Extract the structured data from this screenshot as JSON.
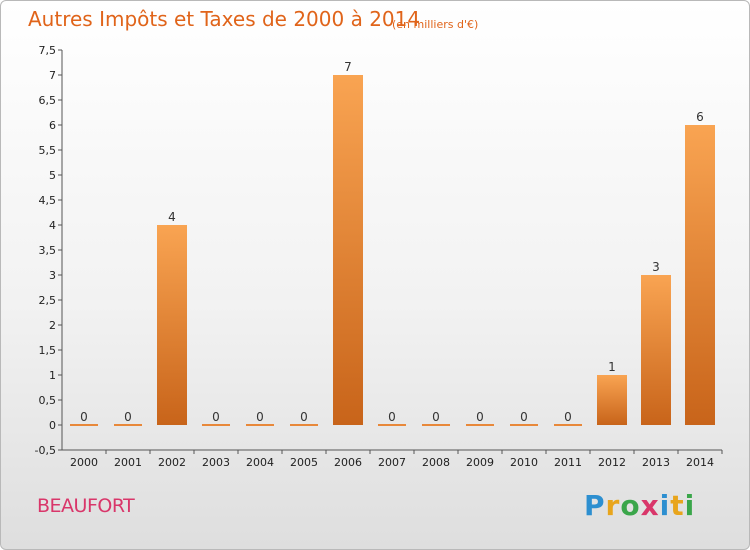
{
  "title": "Autres Impôts et Taxes de 2000 à 2014",
  "subtitle": "(en milliers d'€)",
  "commune": "BEAUFORT",
  "logo": {
    "letters": [
      "P",
      "r",
      "o",
      "x",
      "i",
      "t",
      "i"
    ],
    "colors": [
      "#2d8fd0",
      "#e8a51c",
      "#3aa64a",
      "#d9366a",
      "#2d8fd0",
      "#e8a51c",
      "#3aa64a"
    ]
  },
  "chart_data": {
    "type": "bar",
    "categories": [
      "2000",
      "2001",
      "2002",
      "2003",
      "2004",
      "2005",
      "2006",
      "2007",
      "2008",
      "2009",
      "2010",
      "2011",
      "2012",
      "2013",
      "2014"
    ],
    "values": [
      0,
      0,
      4,
      0,
      0,
      0,
      7,
      0,
      0,
      0,
      0,
      0,
      1,
      3,
      6
    ],
    "data_labels": [
      "0",
      "0",
      "4",
      "0",
      "0",
      "0",
      "7",
      "0",
      "0",
      "0",
      "0",
      "0",
      "1",
      "3",
      "6"
    ],
    "ylim": [
      -0.5,
      7.5
    ],
    "yticks": [
      -0.5,
      0,
      0.5,
      1,
      1.5,
      2,
      2.5,
      3,
      3.5,
      4,
      4.5,
      5,
      5.5,
      6,
      6.5,
      7,
      7.5
    ],
    "ytick_labels": [
      "-0,5",
      "0",
      "0,5",
      "1",
      "1,5",
      "2",
      "2,5",
      "3",
      "3,5",
      "4",
      "4,5",
      "5",
      "5,5",
      "6",
      "6,5",
      "7",
      "7,5"
    ],
    "bar_color_top": "#f9a452",
    "bar_color_bottom": "#c8641a",
    "grid": false
  }
}
